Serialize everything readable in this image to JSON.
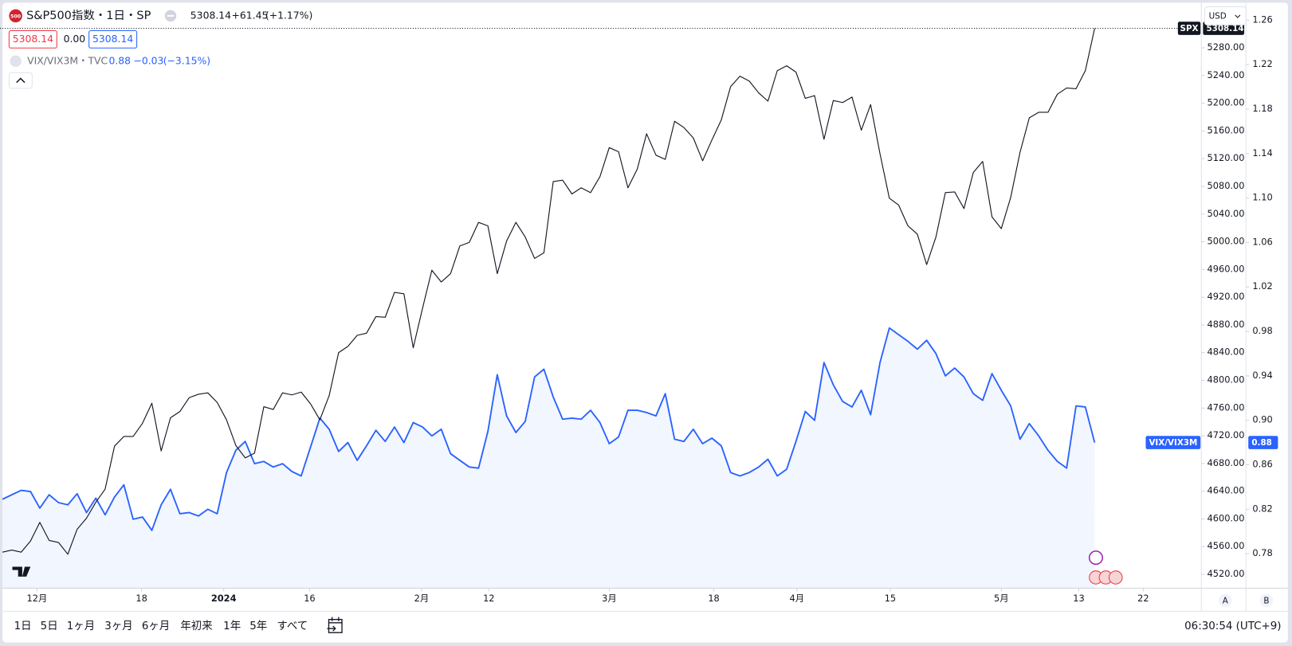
{
  "header": {
    "logo": "500",
    "symbol": "S&P500指数・1日・SP",
    "change": "+61.45",
    "change_pct": "(+1.17%)",
    "spread": "0.00",
    "compare_symbol": "VIX/VIX3M・TVC",
    "compare_change": "−0.03",
    "compare_change_pct": "(−3.15%)"
  },
  "currency": "USD",
  "chart_data": {
    "type": "line",
    "xlim": [
      -0.265,
      128.34
    ],
    "xticks": [
      {
        "value": 3.7,
        "label": "12月"
      },
      {
        "value": 14.9,
        "label": "18"
      },
      {
        "value": 23.7,
        "label": "2024"
      },
      {
        "value": 32.9,
        "label": "16"
      },
      {
        "value": 44.9,
        "label": "2月"
      },
      {
        "value": 52.1,
        "label": "12"
      },
      {
        "value": 65,
        "label": "3月"
      },
      {
        "value": 76.2,
        "label": "18"
      },
      {
        "value": 85.1,
        "label": "4月"
      },
      {
        "value": 95.1,
        "label": "15"
      },
      {
        "value": 107,
        "label": "5月"
      },
      {
        "value": 115.3,
        "label": "13"
      },
      {
        "value": 122.2,
        "label": "22"
      }
    ],
    "ylim": [
      4500,
      5344
    ],
    "yticks": [
      {
        "value": 4520,
        "label": "4520.00"
      },
      {
        "value": 4560,
        "label": "4560.00"
      },
      {
        "value": 4600,
        "label": "4600.00"
      },
      {
        "value": 4640,
        "label": "4640.00"
      },
      {
        "value": 4680,
        "label": "4680.00"
      },
      {
        "value": 4720,
        "label": "4720.00"
      },
      {
        "value": 4760,
        "label": "4760.00"
      },
      {
        "value": 4800,
        "label": "4800.00"
      },
      {
        "value": 4840,
        "label": "4840.00"
      },
      {
        "value": 4880,
        "label": "4880.00"
      },
      {
        "value": 4920,
        "label": "4920.00"
      },
      {
        "value": 4960,
        "label": "4960.00"
      },
      {
        "value": 5000,
        "label": "5000.00"
      },
      {
        "value": 5040,
        "label": "5040.00"
      },
      {
        "value": 5080,
        "label": "5080.00"
      },
      {
        "value": 5120,
        "label": "5120.00"
      },
      {
        "value": 5160,
        "label": "5160.00"
      },
      {
        "value": 5200,
        "label": "5200.00"
      },
      {
        "value": 5240,
        "label": "5240.00"
      },
      {
        "value": 5280,
        "label": "5280.00"
      }
    ],
    "y2lim": [
      0.749,
      1.275
    ],
    "y2ticks": [
      0.78,
      0.82,
      0.86,
      {
        "value": 0.9,
        "label": "0.90"
      },
      0.94,
      0.98,
      1.02,
      1.06,
      {
        "value": 1.1,
        "label": "1.10"
      },
      1.14,
      1.18,
      1.22,
      1.26
    ],
    "series": [
      {
        "name": "SPX",
        "color": "#131722",
        "values": [
          4552,
          4555,
          4552,
          4568,
          4595,
          4569,
          4566,
          4549,
          4585,
          4601,
          4624,
          4643,
          4705,
          4719,
          4719,
          4738,
          4767,
          4698,
          4746,
          4755,
          4775,
          4780,
          4782,
          4768,
          4743,
          4706,
          4688,
          4695,
          4762,
          4758,
          4782,
          4779,
          4783,
          4766,
          4743,
          4778,
          4840,
          4849,
          4865,
          4868,
          4892,
          4891,
          4927,
          4925,
          4847,
          4904,
          4959,
          4942,
          4954,
          4994,
          4999,
          5028,
          5023,
          4954,
          5001,
          5028,
          5007,
          4976,
          4984,
          5087,
          5089,
          5069,
          5078,
          5071,
          5094,
          5136,
          5130,
          5078,
          5105,
          5156,
          5125,
          5119,
          5174,
          5165,
          5150,
          5117,
          5147,
          5176,
          5224,
          5239,
          5232,
          5215,
          5203,
          5247,
          5254,
          5245,
          5207,
          5211,
          5148,
          5204,
          5201,
          5209,
          5161,
          5198,
          5127,
          5063,
          5053,
          5023,
          5011,
          4967,
          5007,
          5071,
          5072,
          5048,
          5100,
          5116,
          5036,
          5019,
          5064,
          5129,
          5179,
          5187,
          5187,
          5213,
          5222,
          5221,
          5247,
          5308.14
        ]
      },
      {
        "name": "VIX/VIX3M",
        "color": "#2962ff",
        "axis": "y2",
        "area": true,
        "values": [
          0.829,
          0.833,
          0.837,
          0.836,
          0.821,
          0.833,
          0.826,
          0.824,
          0.834,
          0.817,
          0.83,
          0.815,
          0.831,
          0.842,
          0.811,
          0.813,
          0.801,
          0.824,
          0.838,
          0.816,
          0.817,
          0.814,
          0.82,
          0.816,
          0.853,
          0.873,
          0.881,
          0.861,
          0.863,
          0.858,
          0.861,
          0.854,
          0.85,
          0.876,
          0.902,
          0.892,
          0.872,
          0.88,
          0.864,
          0.877,
          0.891,
          0.881,
          0.894,
          0.88,
          0.898,
          0.894,
          0.886,
          0.892,
          0.87,
          0.864,
          0.858,
          0.857,
          0.89,
          0.941,
          0.904,
          0.889,
          0.899,
          0.939,
          0.946,
          0.921,
          0.901,
          0.902,
          0.901,
          0.909,
          0.898,
          0.879,
          0.885,
          0.909,
          0.909,
          0.907,
          0.904,
          0.924,
          0.883,
          0.881,
          0.892,
          0.879,
          0.884,
          0.877,
          0.853,
          0.85,
          0.853,
          0.858,
          0.865,
          0.85,
          0.856,
          0.881,
          0.908,
          0.9,
          0.952,
          0.932,
          0.917,
          0.912,
          0.927,
          0.905,
          0.952,
          0.983,
          0.977,
          0.971,
          0.964,
          0.972,
          0.96,
          0.94,
          0.947,
          0.939,
          0.924,
          0.918,
          0.942,
          0.927,
          0.913,
          0.883,
          0.897,
          0.886,
          0.873,
          0.863,
          0.857,
          0.913,
          0.912,
          0.88
        ]
      }
    ]
  },
  "scale_buttons": [
    "A",
    "B"
  ],
  "toolbar": {
    "ranges": [
      "1日",
      "5日",
      "1ヶ月",
      "3ヶ月",
      "6ヶ月",
      "年初来",
      "1年",
      "5年",
      "すべて"
    ],
    "time": "06:30:54 (UTC+9)"
  }
}
